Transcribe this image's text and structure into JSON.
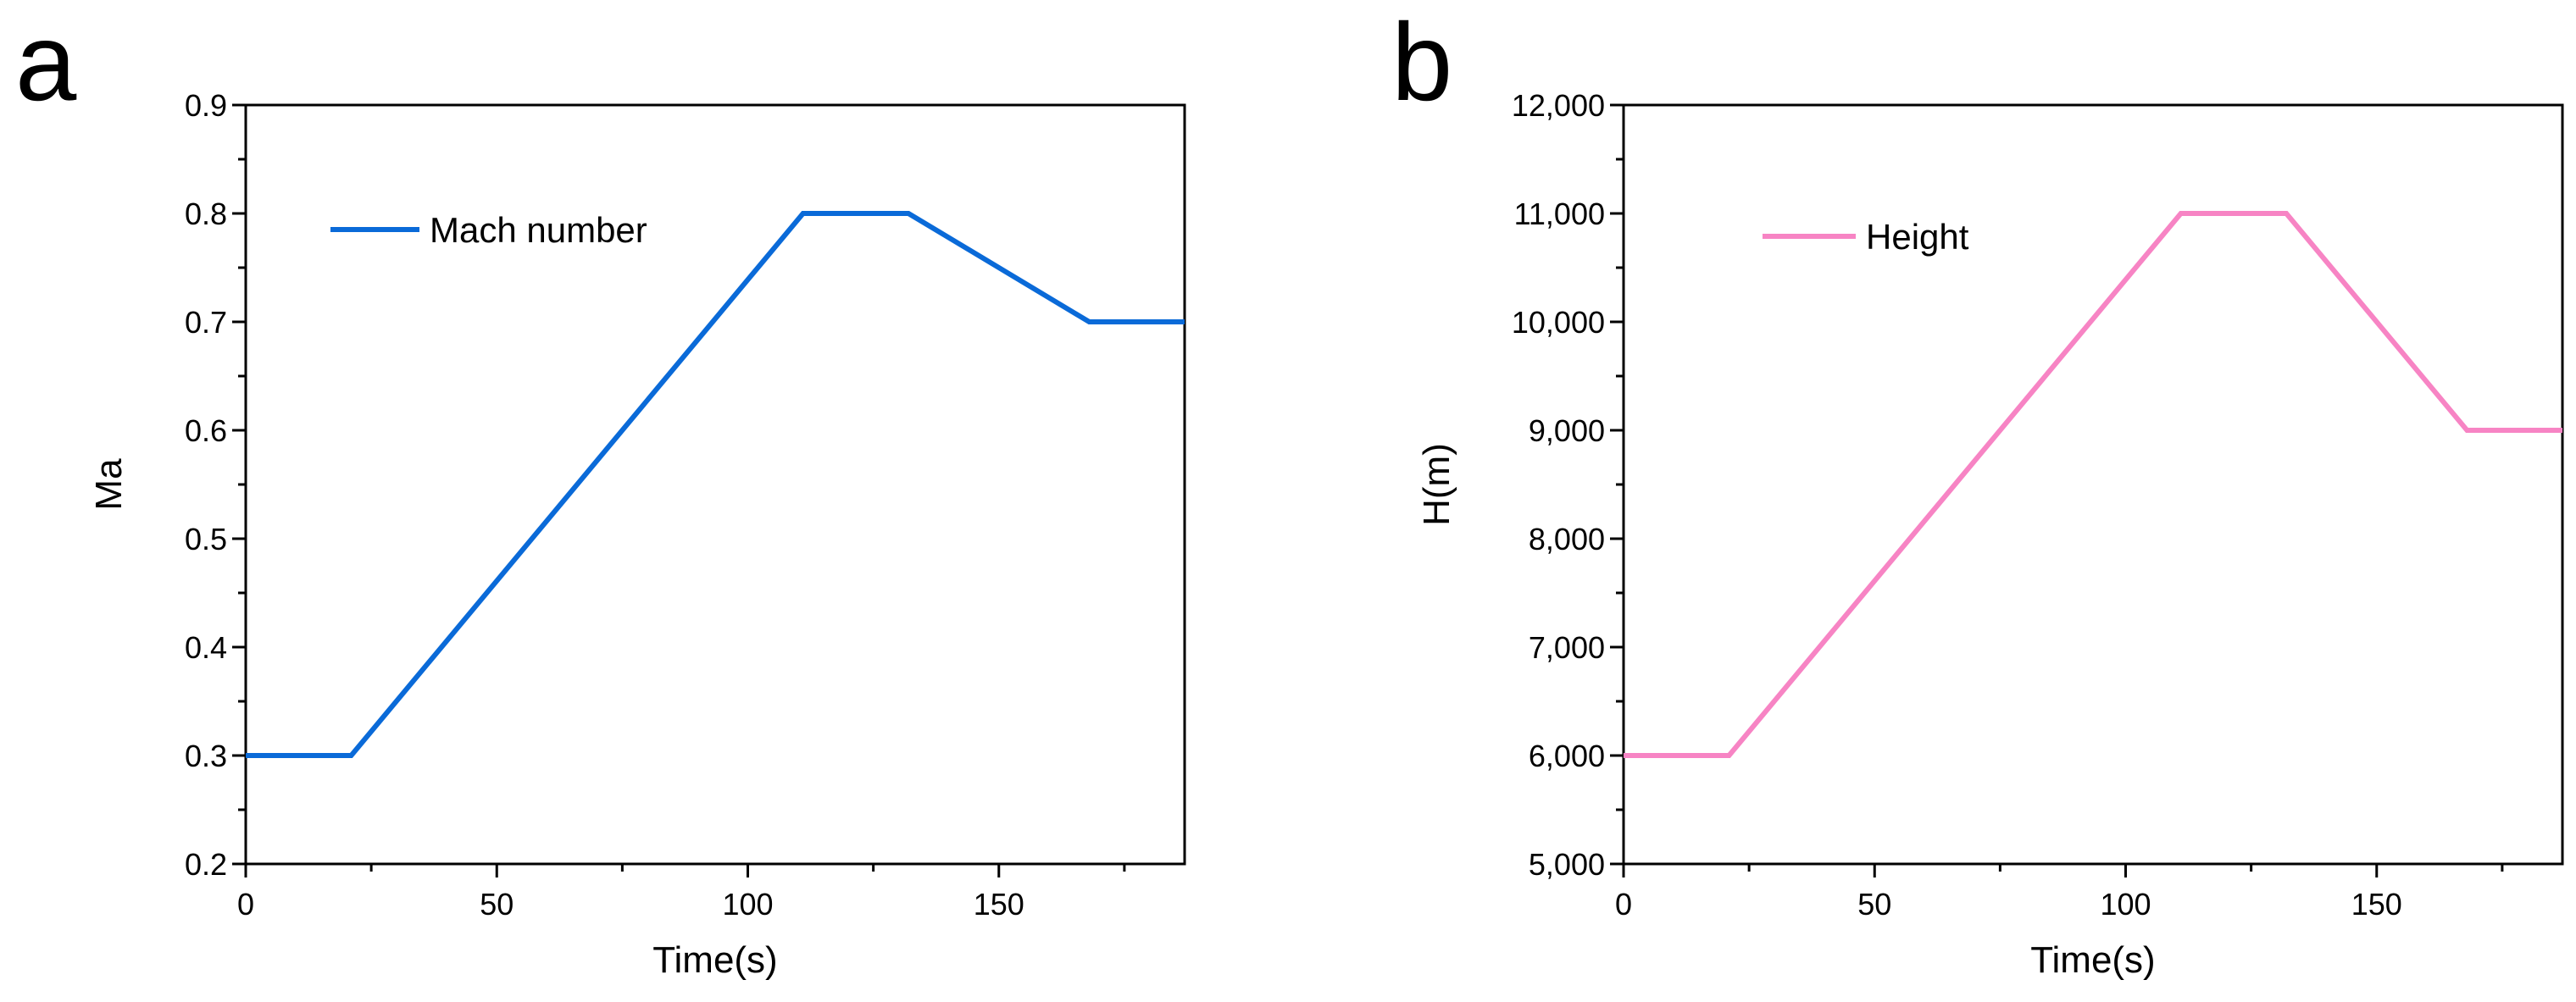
{
  "chart_data": [
    {
      "type": "line",
      "panel_label": "a",
      "xlabel": "Time(s)",
      "ylabel": "Ma",
      "xlim": [
        0,
        187
      ],
      "ylim": [
        0.2,
        0.9
      ],
      "x_ticks": [
        0,
        50,
        100,
        150
      ],
      "x_tick_labels": [
        "0",
        "50",
        "100",
        "150"
      ],
      "x_minor_ticks": [
        25,
        75,
        125,
        175
      ],
      "y_ticks": [
        0.2,
        0.3,
        0.4,
        0.5,
        0.6,
        0.7,
        0.8,
        0.9
      ],
      "y_tick_labels": [
        "0.2",
        "0.3",
        "0.4",
        "0.5",
        "0.6",
        "0.7",
        "0.8",
        "0.9"
      ],
      "y_minor_ticks": [
        0.25,
        0.35,
        0.45,
        0.55,
        0.65,
        0.75,
        0.85
      ],
      "grid": false,
      "legend": "top-left",
      "series": [
        {
          "name": "Mach number",
          "color": "#0a6ad8",
          "x": [
            0,
            21,
            111,
            132,
            168,
            187
          ],
          "y": [
            0.3,
            0.3,
            0.8,
            0.8,
            0.7,
            0.7
          ]
        }
      ]
    },
    {
      "type": "line",
      "panel_label": "b",
      "xlabel": "Time(s)",
      "ylabel": "H(m)",
      "xlim": [
        0,
        187
      ],
      "ylim": [
        5000,
        12000
      ],
      "x_ticks": [
        0,
        50,
        100,
        150
      ],
      "x_tick_labels": [
        "0",
        "50",
        "100",
        "150"
      ],
      "x_minor_ticks": [
        25,
        75,
        125,
        175
      ],
      "y_ticks": [
        5000,
        6000,
        7000,
        8000,
        9000,
        10000,
        11000,
        12000
      ],
      "y_tick_labels": [
        "5,000",
        "6,000",
        "7,000",
        "8,000",
        "9,000",
        "10,000",
        "11,000",
        "12,000"
      ],
      "y_minor_ticks": [
        5500,
        6500,
        7500,
        8500,
        9500,
        10500,
        11500
      ],
      "grid": false,
      "legend": "top-left",
      "series": [
        {
          "name": "Height",
          "color": "#f784c4",
          "x": [
            0,
            21,
            111,
            132,
            168,
            187
          ],
          "y": [
            6000,
            6000,
            11000,
            11000,
            9000,
            9000
          ]
        }
      ]
    }
  ]
}
